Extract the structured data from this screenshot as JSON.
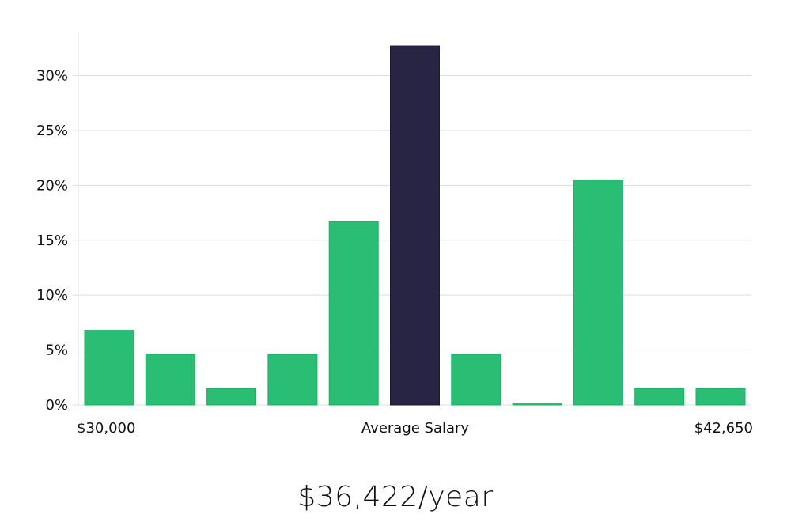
{
  "headline": "$36,422/year",
  "colors": {
    "bar": "#2abd74",
    "bar_stroke": "#1fae66",
    "highlight": "#272444",
    "grid": "#dddddd",
    "axis": "#dddddd"
  },
  "chart_data": {
    "type": "bar",
    "title": "",
    "xlabel": "",
    "ylabel": "",
    "ylim": [
      0,
      34
    ],
    "y_ticks": [
      0,
      5,
      10,
      15,
      20,
      25,
      30
    ],
    "y_tick_labels": [
      "0%",
      "5%",
      "10%",
      "15%",
      "20%",
      "25%",
      "30%"
    ],
    "x_labels": {
      "left": "$30,000",
      "center": "Average Salary",
      "right": "$42,650"
    },
    "values": [
      6.8,
      4.6,
      1.5,
      4.6,
      16.7,
      32.7,
      4.6,
      0.1,
      20.5,
      1.5,
      1.5
    ],
    "highlight_index": 5,
    "grid": true
  }
}
